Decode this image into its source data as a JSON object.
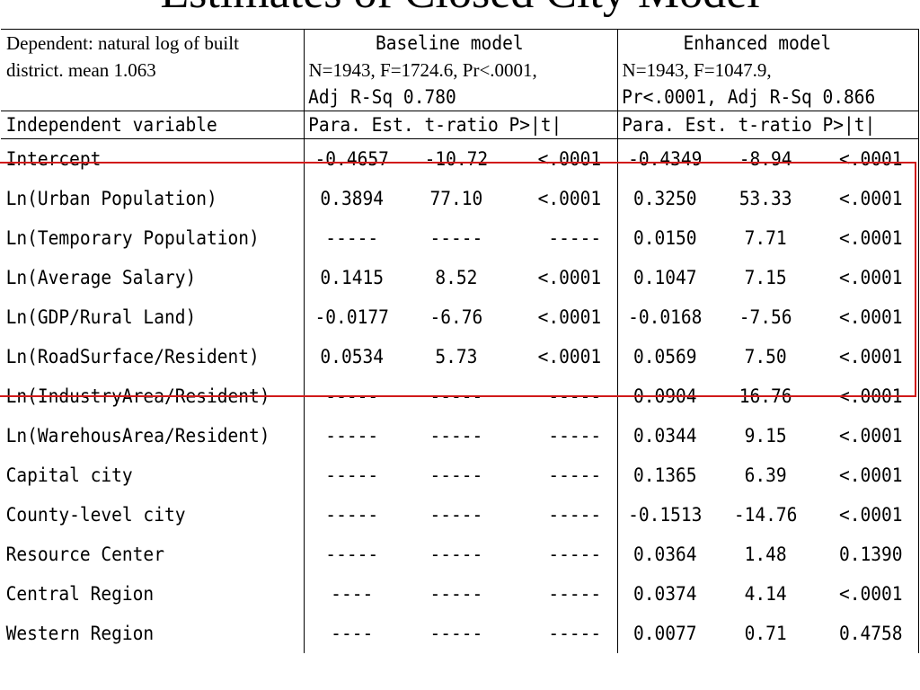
{
  "title": "Estimates of  Closed  City Model",
  "header": {
    "dependent_line1": "Dependent: natural log of built",
    "dependent_line2": "district. mean 1.063",
    "baseline_title": "Baseline model",
    "baseline_stats1": "N=1943, F=1724.6, Pr<.0001,",
    "baseline_stats2": "Adj R-Sq 0.780",
    "enhanced_title": "Enhanced model",
    "enhanced_stats1": "N=1943,  F=1047.9,",
    "enhanced_stats2": "Pr<.0001, Adj R-Sq 0.866",
    "independent_label": "Independent variable",
    "baseline_cols": "Para. Est.  t-ratio P>|t|",
    "enhanced_cols": "Para. Est.  t-ratio P>|t|"
  },
  "rows": [
    {
      "var": "Intercept",
      "b_est": "-0.4657",
      "b_t": "-10.72",
      "b_p": "<.0001",
      "e_est": "-0.4349",
      "e_t": "-8.94",
      "e_p": "<.0001"
    },
    {
      "var": "Ln(Urban Population)",
      "b_est": "0.3894",
      "b_t": "77.10",
      "b_p": "<.0001",
      "e_est": "0.3250",
      "e_t": "53.33",
      "e_p": "<.0001"
    },
    {
      "var": "Ln(Temporary Population)",
      "b_est": "-----",
      "b_t": "-----",
      "b_p": "-----",
      "e_est": "0.0150",
      "e_t": "7.71",
      "e_p": "<.0001"
    },
    {
      "var": "Ln(Average Salary)",
      "b_est": "0.1415",
      "b_t": "8.52",
      "b_p": "<.0001",
      "e_est": "0.1047",
      "e_t": "7.15",
      "e_p": "<.0001"
    },
    {
      "var": "Ln(GDP/Rural Land)",
      "b_est": "-0.0177",
      "b_t": "-6.76",
      "b_p": "<.0001",
      "e_est": "-0.0168",
      "e_t": "-7.56",
      "e_p": "<.0001"
    },
    {
      "var": "Ln(RoadSurface/Resident)",
      "b_est": "0.0534",
      "b_t": "5.73",
      "b_p": "<.0001",
      "e_est": "0.0569",
      "e_t": "7.50",
      "e_p": "<.0001"
    },
    {
      "var": "Ln(IndustryArea/Resident)",
      "b_est": "-----",
      "b_t": "-----",
      "b_p": "-----",
      "e_est": "0.0904",
      "e_t": "16.76",
      "e_p": "<.0001"
    },
    {
      "var": "Ln(WarehousArea/Resident)",
      "b_est": "-----",
      "b_t": "-----",
      "b_p": "-----",
      "e_est": "0.0344",
      "e_t": "9.15",
      "e_p": "<.0001"
    },
    {
      "var": "Capital city",
      "b_est": "-----",
      "b_t": "-----",
      "b_p": "-----",
      "e_est": "0.1365",
      "e_t": "6.39",
      "e_p": "<.0001"
    },
    {
      "var": "County-level city",
      "b_est": "-----",
      "b_t": "-----",
      "b_p": "-----",
      "e_est": "-0.1513",
      "e_t": "-14.76",
      "e_p": "<.0001"
    },
    {
      "var": "Resource Center",
      "b_est": "-----",
      "b_t": "-----",
      "b_p": "-----",
      "e_est": "0.0364",
      "e_t": "1.48",
      "e_p": "0.1390"
    },
    {
      "var": "Central Region",
      "b_est": "----",
      "b_t": "-----",
      "b_p": "-----",
      "e_est": "0.0374",
      "e_t": "4.14",
      "e_p": "<.0001"
    },
    {
      "var": "Western Region",
      "b_est": "----",
      "b_t": "-----",
      "b_p": "-----",
      "e_est": "0.0077",
      "e_t": "0.71",
      "e_p": "0.4758"
    }
  ],
  "highlight_color": "#d11a1a"
}
